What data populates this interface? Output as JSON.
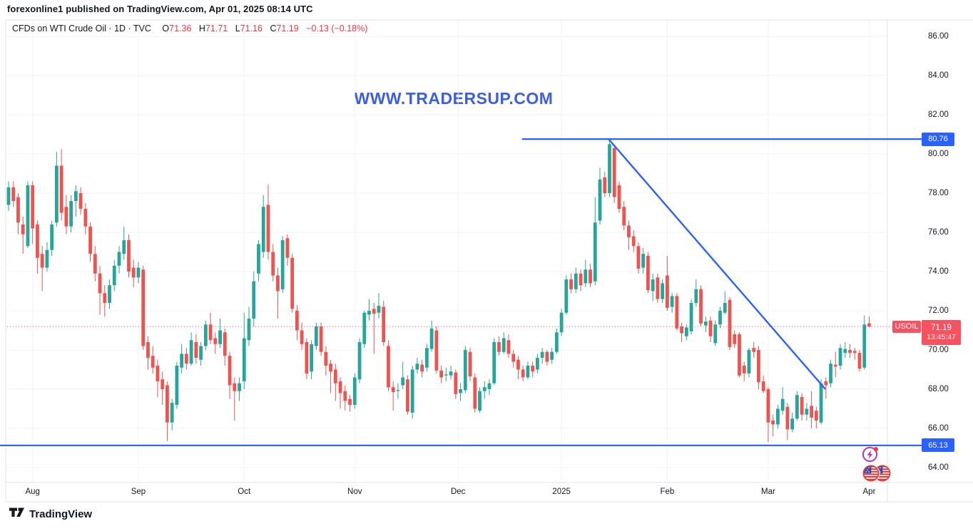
{
  "attribution": "forexonline1 published on TradingView.com, Apr 01, 2025 08:14 UTC",
  "legend": {
    "symbol": "CFDs on WTI Crude Oil · 1D · TVC",
    "o_label": "O",
    "o_value": "71.36",
    "h_label": "H",
    "h_value": "71.71",
    "l_label": "L",
    "l_value": "71.16",
    "c_label": "C",
    "c_value": "71.19",
    "change": "−0.13 (−0.18%)"
  },
  "watermark": "WWW.TRADERSUP.COM",
  "price_labels": {
    "resistance": "80.76",
    "support": "65.13",
    "symbol_tag": "USOIL",
    "last_price": "71.19",
    "countdown": "13:45:47"
  },
  "footer": {
    "logo_text": "TradingView"
  },
  "icons": {
    "bottom_right": [
      "lightning-idea-icon",
      "us-flags-icon"
    ],
    "footer": [
      "tradingview-logo-icon"
    ]
  },
  "colors": {
    "up": "#26A69A",
    "down": "#EF5350",
    "drawing_blue": "#2962FF",
    "last_price_red": "#F7525F",
    "legend_red": "#F23645",
    "grid": "#F0F3FA",
    "frame": "#E0E3EB",
    "text": "#131722",
    "watermark_blue": "#3D5EE1"
  },
  "chart_data": {
    "type": "candlestick",
    "title": "CFDs on WTI Crude Oil",
    "symbol": "USOIL",
    "exchange": "TVC",
    "interval": "1D",
    "last_price": 71.19,
    "price_axis": {
      "ticks": [
        86,
        84,
        82,
        80,
        78,
        76,
        74,
        72,
        70,
        68,
        66,
        64
      ],
      "visible_min": 63.2,
      "visible_max": 86.8,
      "grid": true
    },
    "time_axis": {
      "ticks": [
        {
          "label": "Aug",
          "i": 5
        },
        {
          "label": "Sep",
          "i": 27
        },
        {
          "label": "Oct",
          "i": 49
        },
        {
          "label": "Nov",
          "i": 72
        },
        {
          "label": "Dec",
          "i": 93.5
        },
        {
          "label": "2025",
          "i": 115
        },
        {
          "label": "Feb",
          "i": 137
        },
        {
          "label": "Mar",
          "i": 158
        },
        {
          "label": "Apr",
          "i": 179
        }
      ]
    },
    "levels": [
      {
        "type": "hline",
        "price": 80.76,
        "from_index": 106.8,
        "label": "80.76"
      },
      {
        "type": "hline",
        "price": 65.13,
        "from_index": -1.8,
        "label": "65.13"
      }
    ],
    "trendline": {
      "from_index": 124.8,
      "from_price": 80.76,
      "to_index": 169.9,
      "to_price": 68.0
    },
    "last_price_line": 71.19,
    "candles": [
      [
        77.4,
        78.6,
        77.1,
        78.3
      ],
      [
        78.3,
        78.6,
        77.3,
        77.6
      ],
      [
        77.8,
        78.0,
        75.9,
        76.5
      ],
      [
        76.4,
        76.8,
        74.9,
        75.9
      ],
      [
        75.3,
        78.6,
        75.2,
        78.4
      ],
      [
        78.4,
        78.6,
        75.4,
        76.2
      ],
      [
        76.4,
        76.6,
        73.9,
        74.7
      ],
      [
        74.9,
        75.3,
        73.0,
        74.2
      ],
      [
        74.2,
        75.5,
        74.0,
        75.1
      ],
      [
        75.1,
        76.6,
        74.8,
        76.4
      ],
      [
        76.5,
        80.1,
        76.3,
        79.4
      ],
      [
        79.4,
        80.25,
        76.6,
        77.0
      ],
      [
        77.3,
        77.9,
        75.9,
        76.3
      ],
      [
        76.3,
        77.9,
        76.0,
        77.6
      ],
      [
        77.6,
        78.4,
        76.8,
        78.1
      ],
      [
        78.0,
        78.3,
        76.9,
        77.2
      ],
      [
        77.2,
        77.5,
        75.9,
        76.3
      ],
      [
        76.3,
        76.5,
        74.5,
        74.9
      ],
      [
        74.9,
        75.3,
        73.5,
        73.9
      ],
      [
        73.9,
        74.3,
        71.8,
        72.9
      ],
      [
        72.9,
        73.3,
        71.7,
        72.4
      ],
      [
        72.4,
        73.6,
        72.1,
        73.3
      ],
      [
        73.3,
        74.6,
        73.0,
        74.3
      ],
      [
        74.3,
        75.3,
        73.9,
        75.0
      ],
      [
        74.9,
        76.3,
        74.6,
        75.6
      ],
      [
        75.6,
        75.9,
        73.7,
        74.0
      ],
      [
        74.2,
        74.6,
        73.2,
        73.7
      ],
      [
        73.7,
        74.5,
        73.4,
        74.2
      ],
      [
        74.1,
        74.3,
        70.0,
        70.2
      ],
      [
        70.4,
        70.7,
        69.0,
        69.6
      ],
      [
        69.7,
        70.2,
        68.8,
        69.1
      ],
      [
        69.2,
        69.5,
        67.6,
        68.4
      ],
      [
        68.5,
        68.9,
        67.2,
        68.0
      ],
      [
        68.2,
        68.4,
        65.35,
        66.3
      ],
      [
        66.3,
        67.5,
        65.9,
        67.3
      ],
      [
        67.2,
        69.4,
        67.0,
        69.2
      ],
      [
        69.1,
        70.3,
        68.8,
        69.8
      ],
      [
        69.8,
        70.1,
        69.0,
        69.3
      ],
      [
        69.3,
        70.9,
        69.2,
        70.5
      ],
      [
        70.4,
        70.8,
        69.3,
        69.6
      ],
      [
        69.5,
        70.4,
        69.2,
        70.2
      ],
      [
        70.2,
        71.5,
        70.0,
        71.3
      ],
      [
        71.3,
        71.9,
        70.3,
        70.5
      ],
      [
        70.6,
        70.9,
        69.8,
        70.3
      ],
      [
        70.3,
        71.6,
        70.1,
        71.0
      ],
      [
        70.9,
        71.1,
        69.2,
        69.7
      ],
      [
        69.7,
        69.9,
        67.5,
        68.2
      ],
      [
        68.3,
        68.6,
        66.4,
        67.9
      ],
      [
        67.9,
        68.6,
        67.4,
        68.3
      ],
      [
        68.4,
        71.9,
        68.0,
        70.6
      ],
      [
        70.5,
        72.2,
        70.2,
        71.6
      ],
      [
        71.6,
        74.0,
        71.2,
        73.5
      ],
      [
        73.9,
        75.6,
        73.5,
        75.4
      ],
      [
        75.0,
        77.9,
        74.7,
        77.3
      ],
      [
        77.4,
        78.45,
        74.6,
        75.0
      ],
      [
        75.0,
        75.4,
        73.5,
        73.8
      ],
      [
        73.8,
        74.2,
        71.6,
        73.0
      ],
      [
        73.1,
        75.8,
        72.9,
        75.6
      ],
      [
        75.7,
        75.9,
        74.3,
        74.7
      ],
      [
        74.7,
        74.9,
        71.9,
        72.1
      ],
      [
        72.0,
        72.3,
        70.5,
        71.0
      ],
      [
        71.0,
        71.4,
        70.0,
        70.3
      ],
      [
        70.4,
        70.6,
        68.5,
        68.8
      ],
      [
        68.9,
        70.5,
        68.5,
        70.3
      ],
      [
        70.2,
        71.4,
        70.0,
        71.2
      ],
      [
        71.2,
        71.4,
        69.7,
        69.9
      ],
      [
        69.9,
        70.2,
        68.7,
        69.2
      ],
      [
        69.3,
        69.5,
        67.8,
        68.9
      ],
      [
        69.0,
        69.3,
        67.4,
        68.3
      ],
      [
        68.4,
        68.6,
        67.0,
        67.8
      ],
      [
        67.9,
        68.2,
        66.9,
        67.4
      ],
      [
        67.5,
        67.7,
        66.85,
        67.2
      ],
      [
        67.2,
        68.8,
        67.0,
        68.6
      ],
      [
        68.5,
        70.6,
        68.3,
        70.4
      ],
      [
        70.3,
        72.0,
        70.1,
        71.9
      ],
      [
        71.8,
        72.6,
        71.5,
        72.0
      ],
      [
        72.1,
        72.4,
        69.8,
        71.85
      ],
      [
        71.9,
        72.9,
        71.6,
        72.25
      ],
      [
        72.2,
        72.5,
        70.2,
        70.4
      ],
      [
        70.2,
        70.5,
        67.9,
        68.1
      ],
      [
        68.1,
        68.4,
        66.9,
        67.85
      ],
      [
        67.9,
        68.3,
        67.5,
        67.95
      ],
      [
        68.2,
        69.4,
        68.0,
        68.6
      ],
      [
        68.5,
        68.7,
        66.7,
        66.85
      ],
      [
        66.8,
        69.2,
        66.5,
        69.0
      ],
      [
        69.0,
        69.6,
        68.8,
        69.3
      ],
      [
        69.25,
        69.5,
        68.6,
        68.9
      ],
      [
        69.1,
        70.3,
        68.9,
        70.1
      ],
      [
        70.05,
        71.5,
        69.9,
        71.1
      ],
      [
        71.0,
        71.2,
        68.8,
        68.95
      ],
      [
        68.95,
        69.2,
        68.3,
        68.6
      ],
      [
        68.7,
        69.1,
        68.4,
        68.75
      ],
      [
        68.7,
        69.2,
        68.5,
        68.9
      ],
      [
        68.85,
        69.0,
        67.5,
        67.75
      ],
      [
        67.8,
        68.3,
        67.4,
        68.0
      ],
      [
        67.95,
        70.2,
        67.8,
        70.0
      ],
      [
        69.9,
        70.1,
        68.4,
        68.65
      ],
      [
        68.6,
        68.8,
        66.8,
        67.0
      ],
      [
        66.9,
        68.1,
        66.8,
        67.9
      ],
      [
        67.9,
        68.4,
        67.5,
        68.1
      ],
      [
        68.0,
        68.5,
        67.7,
        68.3
      ],
      [
        68.3,
        70.6,
        68.2,
        70.4
      ],
      [
        70.4,
        70.7,
        69.7,
        69.9
      ],
      [
        69.9,
        70.9,
        69.8,
        70.6
      ],
      [
        70.5,
        70.8,
        69.6,
        69.8
      ],
      [
        69.8,
        70.0,
        69.1,
        69.4
      ],
      [
        69.5,
        69.7,
        68.5,
        69.0
      ],
      [
        69.0,
        69.2,
        68.4,
        68.6
      ],
      [
        68.6,
        69.4,
        68.5,
        69.2
      ],
      [
        69.2,
        69.4,
        68.6,
        68.9
      ],
      [
        69.0,
        69.8,
        68.8,
        69.6
      ],
      [
        69.6,
        70.1,
        69.3,
        69.9
      ],
      [
        69.9,
        70.0,
        69.2,
        69.4
      ],
      [
        69.5,
        70.1,
        69.3,
        69.9
      ],
      [
        69.9,
        71.1,
        69.8,
        70.9
      ],
      [
        70.9,
        72.1,
        70.7,
        71.9
      ],
      [
        71.9,
        73.8,
        71.8,
        73.6
      ],
      [
        73.6,
        73.9,
        72.9,
        73.1
      ],
      [
        73.1,
        74.2,
        72.9,
        73.9
      ],
      [
        73.9,
        74.1,
        73.0,
        73.3
      ],
      [
        73.4,
        74.6,
        73.2,
        74.1
      ],
      [
        74.1,
        74.4,
        73.2,
        73.4
      ],
      [
        73.5,
        77.8,
        73.3,
        76.5
      ],
      [
        76.6,
        79.3,
        76.4,
        78.7
      ],
      [
        78.8,
        79.1,
        77.8,
        78.0
      ],
      [
        78.0,
        80.76,
        77.8,
        80.5
      ],
      [
        80.3,
        80.5,
        77.5,
        77.8
      ],
      [
        78.4,
        78.6,
        77.0,
        77.2
      ],
      [
        77.3,
        77.6,
        76.1,
        76.35
      ],
      [
        76.35,
        76.6,
        75.1,
        75.75
      ],
      [
        75.8,
        76.1,
        75.0,
        75.3
      ],
      [
        75.3,
        75.5,
        73.9,
        74.15
      ],
      [
        74.2,
        75.2,
        73.9,
        74.9
      ],
      [
        74.8,
        75.0,
        72.9,
        73.05
      ],
      [
        73.0,
        73.9,
        72.5,
        73.6
      ],
      [
        73.7,
        73.9,
        72.4,
        72.6
      ],
      [
        72.6,
        73.6,
        72.4,
        73.4
      ],
      [
        73.8,
        74.8,
        72.0,
        72.15
      ],
      [
        72.2,
        72.9,
        71.9,
        72.75
      ],
      [
        72.75,
        72.9,
        71.0,
        71.1
      ],
      [
        71.2,
        71.4,
        70.4,
        70.85
      ],
      [
        70.7,
        71.3,
        70.5,
        71.15
      ],
      [
        70.95,
        72.6,
        70.8,
        72.4
      ],
      [
        72.4,
        73.6,
        72.2,
        73.1
      ],
      [
        73.1,
        73.3,
        71.2,
        71.35
      ],
      [
        71.25,
        71.7,
        70.9,
        71.45
      ],
      [
        71.5,
        71.7,
        70.4,
        70.7
      ],
      [
        70.35,
        71.5,
        70.2,
        71.3
      ],
      [
        71.3,
        72.2,
        71.1,
        72.0
      ],
      [
        71.9,
        73.0,
        71.8,
        72.4
      ],
      [
        72.55,
        72.7,
        70.0,
        70.15
      ],
      [
        70.8,
        71.0,
        70.1,
        70.3
      ],
      [
        70.8,
        70.9,
        68.6,
        68.7
      ],
      [
        69.2,
        69.4,
        68.4,
        68.8
      ],
      [
        68.8,
        70.1,
        68.6,
        70.0
      ],
      [
        70.1,
        70.4,
        69.6,
        69.9
      ],
      [
        70.0,
        70.2,
        68.0,
        68.35
      ],
      [
        68.4,
        68.7,
        67.8,
        67.9
      ],
      [
        68.0,
        68.1,
        65.3,
        66.3
      ],
      [
        66.4,
        66.7,
        65.6,
        66.2
      ],
      [
        66.2,
        67.2,
        66.0,
        67.0
      ],
      [
        66.9,
        68.1,
        66.7,
        67.5
      ],
      [
        67.1,
        67.3,
        65.4,
        65.95
      ],
      [
        65.95,
        66.8,
        65.8,
        66.5
      ],
      [
        66.5,
        67.9,
        66.4,
        67.7
      ],
      [
        67.6,
        67.8,
        66.4,
        66.7
      ],
      [
        66.7,
        67.3,
        66.4,
        67.0
      ],
      [
        67.15,
        67.9,
        66.0,
        66.55
      ],
      [
        66.9,
        67.1,
        66.0,
        66.4
      ],
      [
        66.3,
        68.5,
        66.2,
        68.3
      ],
      [
        68.4,
        68.6,
        67.5,
        68.2
      ],
      [
        68.3,
        69.5,
        68.1,
        69.3
      ],
      [
        69.25,
        69.9,
        68.6,
        69.15
      ],
      [
        69.2,
        70.3,
        69.0,
        70.1
      ],
      [
        69.85,
        70.4,
        69.6,
        70.05
      ],
      [
        70.0,
        70.3,
        69.6,
        69.85
      ],
      [
        69.95,
        70.1,
        69.5,
        69.85
      ],
      [
        69.85,
        70.0,
        68.9,
        69.05
      ],
      [
        69.1,
        71.75,
        69.0,
        71.3
      ],
      [
        71.36,
        71.71,
        71.16,
        71.19
      ]
    ]
  }
}
